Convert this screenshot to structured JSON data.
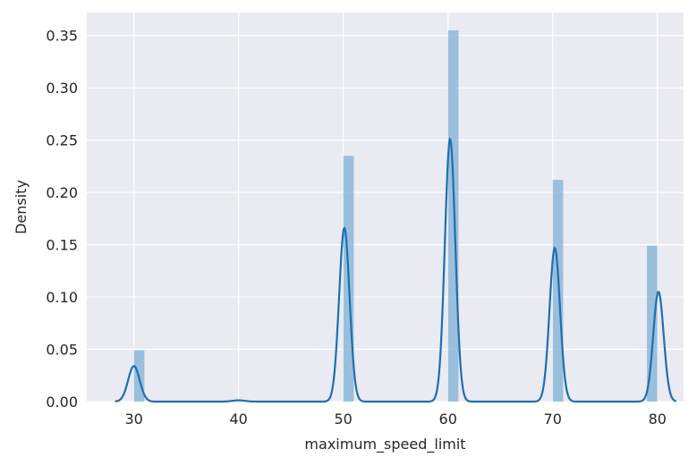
{
  "chart_data": {
    "type": "histogram",
    "xlabel": "maximum_speed_limit",
    "ylabel": "Density",
    "xlim": [
      25.5,
      82.5
    ],
    "ylim": [
      0,
      0.372
    ],
    "xticks": [
      30,
      40,
      50,
      60,
      70,
      80
    ],
    "yticks": [
      0.0,
      0.05,
      0.1,
      0.15,
      0.2,
      0.25,
      0.3,
      0.35
    ],
    "ytick_labels": [
      "0.00",
      "0.05",
      "0.10",
      "0.15",
      "0.20",
      "0.25",
      "0.30",
      "0.35"
    ],
    "grid": true,
    "style": "seaborn-darkgrid",
    "histogram": {
      "bins": [
        {
          "x0": 30,
          "x1": 31,
          "density": 0.049
        },
        {
          "x0": 50,
          "x1": 51,
          "density": 0.235
        },
        {
          "x0": 60,
          "x1": 61,
          "density": 0.355
        },
        {
          "x0": 70,
          "x1": 71,
          "density": 0.212
        },
        {
          "x0": 79,
          "x1": 80,
          "density": 0.149
        }
      ],
      "color": "#7fb0d6"
    },
    "kde": {
      "color": "#1f6fae",
      "x_range": [
        28.2,
        81.8
      ],
      "peaks": [
        {
          "center": 30.0,
          "height": 0.034,
          "sigma": 0.55
        },
        {
          "center": 40.0,
          "height": 0.0012,
          "sigma": 0.6
        },
        {
          "center": 50.1,
          "height": 0.166,
          "sigma": 0.5
        },
        {
          "center": 60.2,
          "height": 0.251,
          "sigma": 0.5
        },
        {
          "center": 70.2,
          "height": 0.147,
          "sigma": 0.5
        },
        {
          "center": 80.1,
          "height": 0.105,
          "sigma": 0.5
        }
      ]
    }
  }
}
